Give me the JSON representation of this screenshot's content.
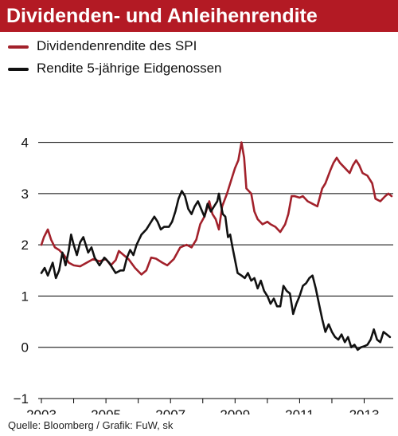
{
  "title": "Dividenden- und Anleihenrendite",
  "source": "Quelle: Bloomberg / Grafik: FuW, sk",
  "colors": {
    "title_bg": "#b31a24",
    "title_text": "#ffffff",
    "spi": "#a2212b",
    "bond": "#111111",
    "grid": "#000000"
  },
  "chart_data": {
    "type": "line",
    "title": "Dividenden- und Anleihenrendite",
    "xlabel": "",
    "ylabel": "",
    "xlim": [
      2003,
      2013.9
    ],
    "ylim": [
      -1,
      4.6
    ],
    "yticks": [
      -1,
      0,
      1,
      2,
      3,
      4
    ],
    "xticks": [
      2003,
      2005,
      2007,
      2009,
      2011,
      2013
    ],
    "grid": "horizontal",
    "legend_position": "top-left",
    "series": [
      {
        "name": "Dividendenrendite des SPI",
        "color": "#a2212b",
        "points": [
          [
            2003.0,
            2.0
          ],
          [
            2003.08,
            2.15
          ],
          [
            2003.2,
            2.3
          ],
          [
            2003.3,
            2.1
          ],
          [
            2003.42,
            1.95
          ],
          [
            2003.55,
            1.9
          ],
          [
            2003.7,
            1.8
          ],
          [
            2003.85,
            1.65
          ],
          [
            2004.0,
            1.6
          ],
          [
            2004.2,
            1.58
          ],
          [
            2004.4,
            1.65
          ],
          [
            2004.6,
            1.72
          ],
          [
            2004.8,
            1.68
          ],
          [
            2005.0,
            1.72
          ],
          [
            2005.15,
            1.6
          ],
          [
            2005.3,
            1.7
          ],
          [
            2005.4,
            1.88
          ],
          [
            2005.55,
            1.8
          ],
          [
            2005.7,
            1.72
          ],
          [
            2005.9,
            1.55
          ],
          [
            2006.1,
            1.42
          ],
          [
            2006.25,
            1.5
          ],
          [
            2006.4,
            1.75
          ],
          [
            2006.55,
            1.73
          ],
          [
            2006.75,
            1.65
          ],
          [
            2006.9,
            1.6
          ],
          [
            2007.1,
            1.72
          ],
          [
            2007.3,
            1.95
          ],
          [
            2007.5,
            2.0
          ],
          [
            2007.65,
            1.95
          ],
          [
            2007.8,
            2.1
          ],
          [
            2007.92,
            2.4
          ],
          [
            2008.05,
            2.55
          ],
          [
            2008.2,
            2.85
          ],
          [
            2008.3,
            2.6
          ],
          [
            2008.4,
            2.5
          ],
          [
            2008.5,
            2.3
          ],
          [
            2008.6,
            2.75
          ],
          [
            2008.75,
            3.0
          ],
          [
            2008.9,
            3.3
          ],
          [
            2009.0,
            3.5
          ],
          [
            2009.1,
            3.65
          ],
          [
            2009.2,
            4.0
          ],
          [
            2009.28,
            3.7
          ],
          [
            2009.35,
            3.1
          ],
          [
            2009.5,
            3.0
          ],
          [
            2009.6,
            2.65
          ],
          [
            2009.7,
            2.5
          ],
          [
            2009.85,
            2.4
          ],
          [
            2010.0,
            2.45
          ],
          [
            2010.1,
            2.4
          ],
          [
            2010.25,
            2.35
          ],
          [
            2010.4,
            2.25
          ],
          [
            2010.55,
            2.4
          ],
          [
            2010.65,
            2.6
          ],
          [
            2010.75,
            2.95
          ],
          [
            2010.85,
            2.95
          ],
          [
            2011.0,
            2.92
          ],
          [
            2011.1,
            2.95
          ],
          [
            2011.25,
            2.85
          ],
          [
            2011.4,
            2.8
          ],
          [
            2011.55,
            2.75
          ],
          [
            2011.7,
            3.1
          ],
          [
            2011.8,
            3.2
          ],
          [
            2011.95,
            3.45
          ],
          [
            2012.05,
            3.6
          ],
          [
            2012.15,
            3.7
          ],
          [
            2012.25,
            3.6
          ],
          [
            2012.4,
            3.5
          ],
          [
            2012.55,
            3.4
          ],
          [
            2012.65,
            3.55
          ],
          [
            2012.75,
            3.65
          ],
          [
            2012.85,
            3.55
          ],
          [
            2012.95,
            3.4
          ],
          [
            2013.1,
            3.35
          ],
          [
            2013.25,
            3.2
          ],
          [
            2013.35,
            2.9
          ],
          [
            2013.5,
            2.85
          ],
          [
            2013.65,
            2.95
          ],
          [
            2013.75,
            3.0
          ],
          [
            2013.85,
            2.95
          ]
        ]
      },
      {
        "name": "Rendite 5-jährige Eidgenossen",
        "color": "#111111",
        "points": [
          [
            2003.0,
            1.45
          ],
          [
            2003.1,
            1.55
          ],
          [
            2003.2,
            1.4
          ],
          [
            2003.35,
            1.65
          ],
          [
            2003.45,
            1.35
          ],
          [
            2003.55,
            1.5
          ],
          [
            2003.65,
            1.85
          ],
          [
            2003.75,
            1.6
          ],
          [
            2003.85,
            1.9
          ],
          [
            2003.92,
            2.2
          ],
          [
            2004.0,
            2.0
          ],
          [
            2004.1,
            1.8
          ],
          [
            2004.2,
            2.05
          ],
          [
            2004.3,
            2.15
          ],
          [
            2004.45,
            1.85
          ],
          [
            2004.55,
            1.95
          ],
          [
            2004.65,
            1.75
          ],
          [
            2004.8,
            1.6
          ],
          [
            2004.95,
            1.75
          ],
          [
            2005.1,
            1.65
          ],
          [
            2005.2,
            1.55
          ],
          [
            2005.3,
            1.45
          ],
          [
            2005.45,
            1.5
          ],
          [
            2005.55,
            1.5
          ],
          [
            2005.65,
            1.75
          ],
          [
            2005.75,
            1.9
          ],
          [
            2005.85,
            1.8
          ],
          [
            2005.95,
            2.0
          ],
          [
            2006.1,
            2.2
          ],
          [
            2006.25,
            2.3
          ],
          [
            2006.4,
            2.45
          ],
          [
            2006.5,
            2.55
          ],
          [
            2006.6,
            2.45
          ],
          [
            2006.7,
            2.3
          ],
          [
            2006.8,
            2.35
          ],
          [
            2006.95,
            2.35
          ],
          [
            2007.05,
            2.45
          ],
          [
            2007.15,
            2.65
          ],
          [
            2007.25,
            2.9
          ],
          [
            2007.35,
            3.05
          ],
          [
            2007.45,
            2.95
          ],
          [
            2007.55,
            2.7
          ],
          [
            2007.65,
            2.6
          ],
          [
            2007.75,
            2.75
          ],
          [
            2007.85,
            2.85
          ],
          [
            2007.95,
            2.7
          ],
          [
            2008.05,
            2.55
          ],
          [
            2008.15,
            2.8
          ],
          [
            2008.25,
            2.65
          ],
          [
            2008.35,
            2.75
          ],
          [
            2008.45,
            2.85
          ],
          [
            2008.5,
            3.0
          ],
          [
            2008.57,
            2.75
          ],
          [
            2008.62,
            2.6
          ],
          [
            2008.7,
            2.55
          ],
          [
            2008.78,
            2.15
          ],
          [
            2008.85,
            2.2
          ],
          [
            2008.92,
            1.95
          ],
          [
            2009.0,
            1.7
          ],
          [
            2009.08,
            1.45
          ],
          [
            2009.2,
            1.4
          ],
          [
            2009.3,
            1.35
          ],
          [
            2009.4,
            1.45
          ],
          [
            2009.5,
            1.3
          ],
          [
            2009.6,
            1.35
          ],
          [
            2009.7,
            1.15
          ],
          [
            2009.8,
            1.3
          ],
          [
            2009.9,
            1.1
          ],
          [
            2010.0,
            1.0
          ],
          [
            2010.1,
            0.85
          ],
          [
            2010.2,
            0.95
          ],
          [
            2010.3,
            0.8
          ],
          [
            2010.4,
            0.8
          ],
          [
            2010.5,
            1.2
          ],
          [
            2010.6,
            1.1
          ],
          [
            2010.7,
            1.05
          ],
          [
            2010.8,
            0.65
          ],
          [
            2010.9,
            0.85
          ],
          [
            2011.0,
            1.0
          ],
          [
            2011.1,
            1.2
          ],
          [
            2011.2,
            1.25
          ],
          [
            2011.3,
            1.35
          ],
          [
            2011.4,
            1.4
          ],
          [
            2011.5,
            1.15
          ],
          [
            2011.6,
            0.85
          ],
          [
            2011.7,
            0.55
          ],
          [
            2011.8,
            0.3
          ],
          [
            2011.9,
            0.45
          ],
          [
            2012.0,
            0.3
          ],
          [
            2012.1,
            0.2
          ],
          [
            2012.2,
            0.15
          ],
          [
            2012.3,
            0.25
          ],
          [
            2012.4,
            0.1
          ],
          [
            2012.5,
            0.2
          ],
          [
            2012.6,
            0.0
          ],
          [
            2012.7,
            0.05
          ],
          [
            2012.8,
            -0.05
          ],
          [
            2012.9,
            0.0
          ],
          [
            2013.0,
            0.02
          ],
          [
            2013.1,
            0.05
          ],
          [
            2013.2,
            0.15
          ],
          [
            2013.3,
            0.35
          ],
          [
            2013.4,
            0.15
          ],
          [
            2013.5,
            0.1
          ],
          [
            2013.6,
            0.3
          ],
          [
            2013.7,
            0.25
          ],
          [
            2013.8,
            0.2
          ]
        ]
      }
    ]
  }
}
